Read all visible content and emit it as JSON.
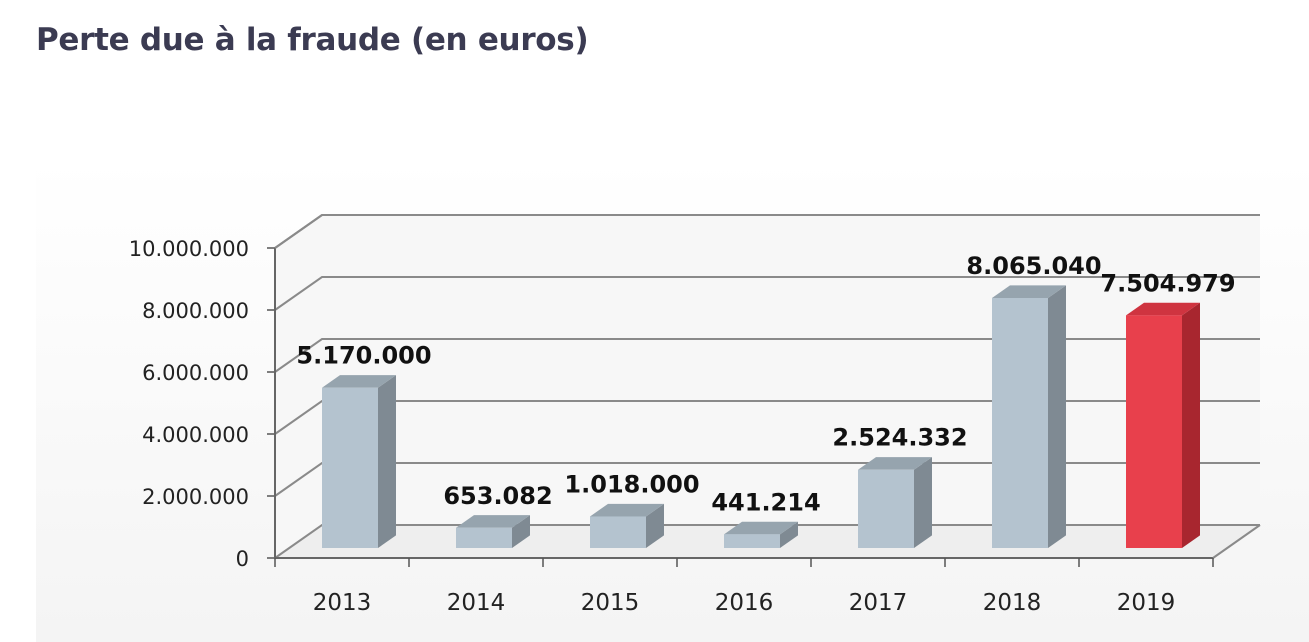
{
  "title": "Perte due à la fraude (en euros)",
  "chart_data": {
    "type": "bar",
    "title": "",
    "xlabel": "",
    "ylabel": "",
    "categories": [
      "2013",
      "2014",
      "2015",
      "2016",
      "2017",
      "2018",
      "2019"
    ],
    "values": [
      5170000,
      653082,
      1018000,
      441214,
      2524332,
      8065040,
      7504979
    ],
    "value_labels": [
      "5.170.000",
      "653.082",
      "1.018.000",
      "441.214",
      "2.524.332",
      "8.065.040",
      "7.504.979"
    ],
    "ylim": [
      0,
      10000000
    ],
    "yticks": [
      0,
      2000000,
      4000000,
      6000000,
      8000000,
      10000000
    ],
    "ytick_labels": [
      "0",
      "2.000.000",
      "4.000.000",
      "6.000.000",
      "8.000.000",
      "10.000.000"
    ],
    "grid": true,
    "style": "3d",
    "colors": {
      "bar_default": "#b4c3cf",
      "bar_highlight": "#e8404c",
      "highlight_category": "2019"
    }
  }
}
